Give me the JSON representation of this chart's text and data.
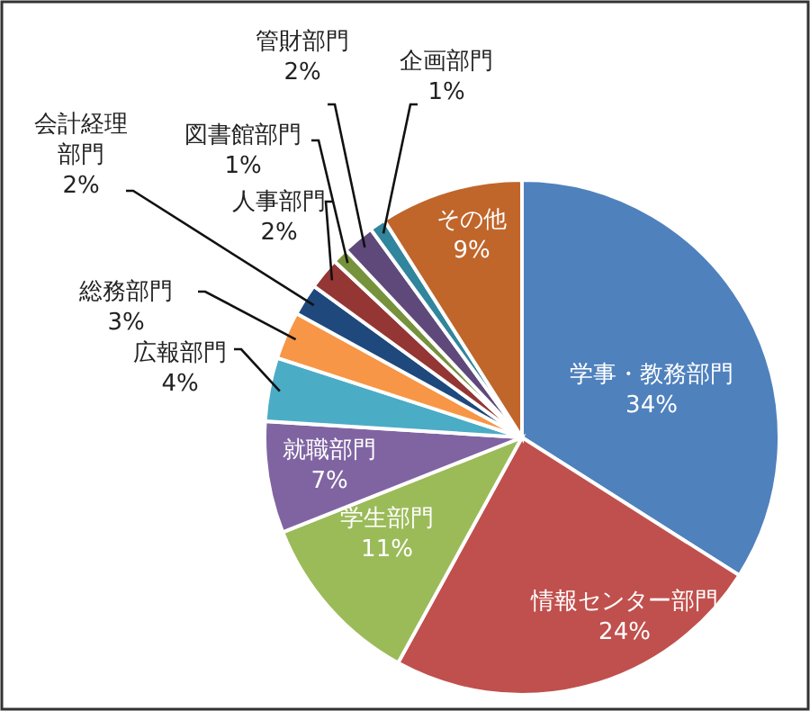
{
  "chart_data": {
    "type": "pie",
    "categories": [
      "学事・教務部門",
      "情報センター部門",
      "学生部門",
      "就職部門",
      "広報部門",
      "総務部門",
      "会計経理部門",
      "人事部門",
      "図書館部門",
      "管財部門",
      "企画部門",
      "その他"
    ],
    "values": [
      34,
      24,
      11,
      7,
      4,
      3,
      2,
      2,
      1,
      2,
      1,
      9
    ],
    "colors": [
      "#4f81bd",
      "#c0504d",
      "#9bbb59",
      "#8064a2",
      "#4bacc6",
      "#f79646",
      "#1f497d",
      "#943634",
      "#76923c",
      "#5f497a",
      "#31859c",
      "#c0662b"
    ],
    "value_labels": [
      "34%",
      "24%",
      "11%",
      "7%",
      "4%",
      "3%",
      "2%",
      "2%",
      "1%",
      "2%",
      "1%",
      "9%"
    ]
  }
}
